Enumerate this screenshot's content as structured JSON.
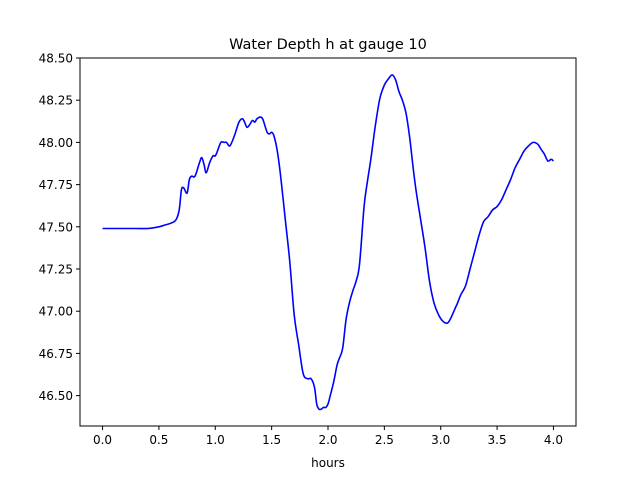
{
  "chart_data": {
    "type": "line",
    "title": "Water Depth h at gauge 10",
    "xlabel": "hours",
    "ylabel": "",
    "xlim": [
      -0.2,
      4.2
    ],
    "ylim": [
      46.32,
      48.5
    ],
    "xticks": [
      0.0,
      0.5,
      1.0,
      1.5,
      2.0,
      2.5,
      3.0,
      3.5,
      4.0
    ],
    "xtick_labels": [
      "0.0",
      "0.5",
      "1.0",
      "1.5",
      "2.0",
      "2.5",
      "3.0",
      "3.5",
      "4.0"
    ],
    "yticks": [
      46.5,
      46.75,
      47.0,
      47.25,
      47.5,
      47.75,
      48.0,
      48.25,
      48.5
    ],
    "ytick_labels": [
      "46.50",
      "46.75",
      "47.00",
      "47.25",
      "47.50",
      "47.75",
      "48.00",
      "48.25",
      "48.50"
    ],
    "grid": false,
    "series": [
      {
        "color": "#0000ff",
        "x": [
          0.0,
          0.1,
          0.2,
          0.3,
          0.4,
          0.5,
          0.55,
          0.6,
          0.65,
          0.68,
          0.7,
          0.72,
          0.75,
          0.77,
          0.79,
          0.82,
          0.86,
          0.88,
          0.9,
          0.92,
          0.95,
          0.98,
          1.0,
          1.02,
          1.05,
          1.08,
          1.1,
          1.13,
          1.17,
          1.21,
          1.24,
          1.26,
          1.28,
          1.3,
          1.33,
          1.35,
          1.37,
          1.4,
          1.42,
          1.44,
          1.46,
          1.48,
          1.5,
          1.52,
          1.55,
          1.58,
          1.62,
          1.66,
          1.7,
          1.74,
          1.78,
          1.82,
          1.85,
          1.88,
          1.9,
          1.92,
          1.94,
          1.96,
          1.98,
          2.0,
          2.02,
          2.05,
          2.08,
          2.1,
          2.13,
          2.16,
          2.19,
          2.22,
          2.25,
          2.28,
          2.32,
          2.35,
          2.38,
          2.42,
          2.46,
          2.5,
          2.54,
          2.57,
          2.6,
          2.63,
          2.66,
          2.69,
          2.71,
          2.73,
          2.75,
          2.78,
          2.82,
          2.86,
          2.9,
          2.94,
          2.98,
          3.02,
          3.06,
          3.09,
          3.11,
          3.13,
          3.15,
          3.18,
          3.22,
          3.26,
          3.3,
          3.34,
          3.38,
          3.42,
          3.46,
          3.5,
          3.54,
          3.58,
          3.62,
          3.66,
          3.7,
          3.74,
          3.78,
          3.82,
          3.86,
          3.88,
          3.9,
          3.92,
          3.95,
          3.98,
          4.0
        ],
        "y": [
          47.49,
          47.49,
          47.49,
          47.49,
          47.49,
          47.5,
          47.51,
          47.52,
          47.54,
          47.6,
          47.72,
          47.73,
          47.7,
          47.78,
          47.8,
          47.8,
          47.88,
          47.91,
          47.87,
          47.82,
          47.88,
          47.92,
          47.92,
          47.95,
          48.0,
          48.0,
          48.0,
          47.98,
          48.04,
          48.12,
          48.14,
          48.12,
          48.09,
          48.1,
          48.13,
          48.12,
          48.14,
          48.15,
          48.14,
          48.1,
          48.06,
          48.05,
          48.06,
          48.04,
          47.95,
          47.8,
          47.55,
          47.3,
          46.98,
          46.8,
          46.63,
          46.6,
          46.6,
          46.55,
          46.45,
          46.42,
          46.42,
          46.43,
          46.43,
          46.45,
          46.5,
          46.58,
          46.68,
          46.72,
          46.78,
          46.95,
          47.05,
          47.12,
          47.18,
          47.28,
          47.62,
          47.77,
          47.9,
          48.1,
          48.26,
          48.34,
          48.38,
          48.4,
          48.37,
          48.3,
          48.25,
          48.18,
          48.1,
          48.0,
          47.88,
          47.72,
          47.55,
          47.38,
          47.18,
          47.05,
          46.98,
          46.94,
          46.93,
          46.96,
          46.99,
          47.02,
          47.05,
          47.1,
          47.15,
          47.25,
          47.35,
          47.45,
          47.53,
          47.56,
          47.6,
          47.62,
          47.66,
          47.72,
          47.78,
          47.85,
          47.9,
          47.95,
          47.98,
          48.0,
          47.99,
          47.97,
          47.95,
          47.93,
          47.89,
          47.9,
          47.89
        ]
      }
    ]
  }
}
